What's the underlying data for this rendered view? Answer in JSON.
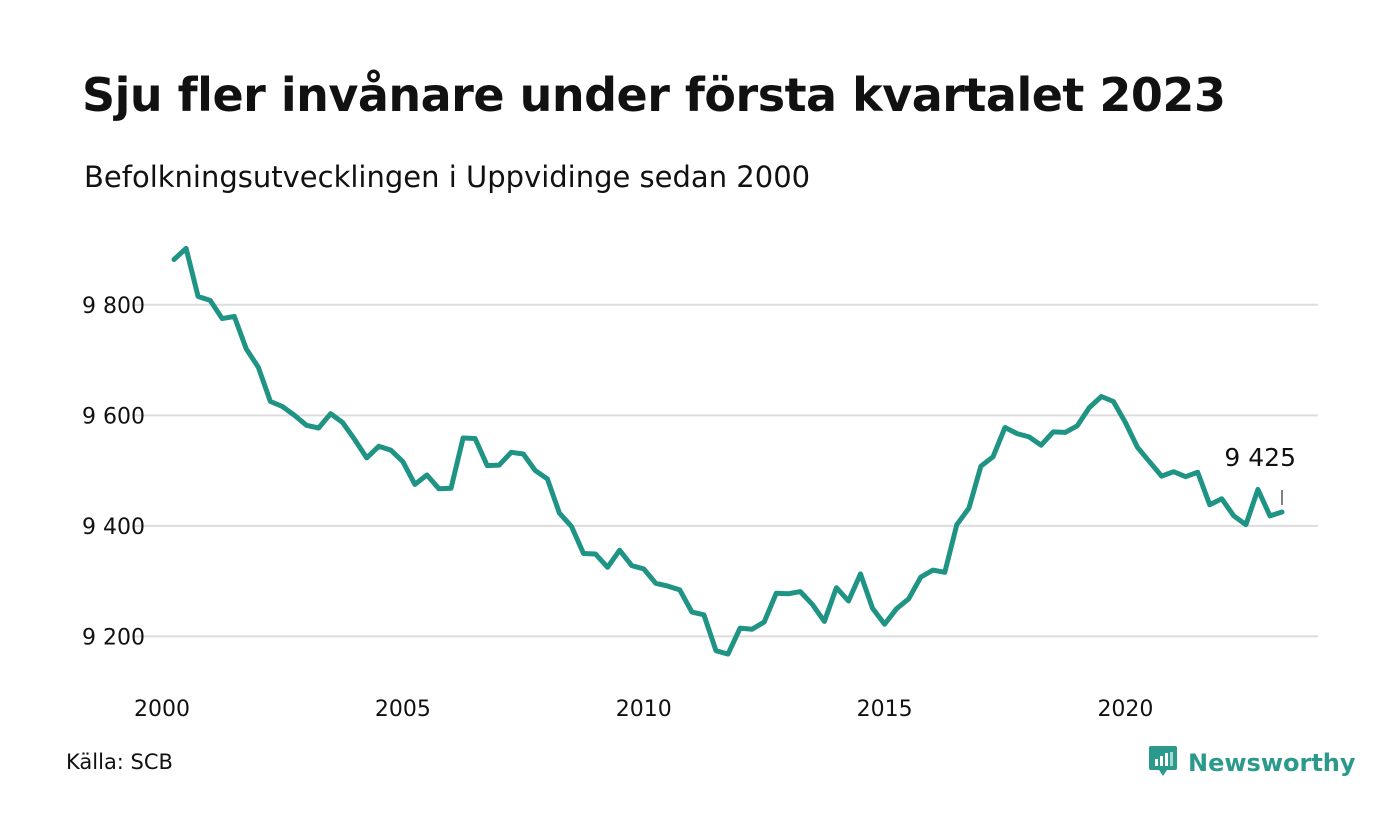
{
  "header": {
    "title": "Sju fler invånare under första kvartalet 2023",
    "subtitle": "Befolkningsutvecklingen i Uppvidinge sedan 2000"
  },
  "footer": {
    "source": "Källa: SCB",
    "brand": "Newsworthy",
    "brand_icon": "newsworthy-logo-icon"
  },
  "colors": {
    "line": "#1f9484",
    "grid": "#dddddd",
    "brand": "#2b9a8c"
  },
  "chart_data": {
    "type": "line",
    "title": "Sju fler invånare under första kvartalet 2023",
    "subtitle": "Befolkningsutvecklingen i Uppvidinge sedan 2000",
    "xlabel": "",
    "ylabel": "",
    "x_tick_labels": [
      "2000",
      "2005",
      "2010",
      "2015",
      "2020"
    ],
    "y_ticks": [
      9200,
      9400,
      9600,
      9800
    ],
    "y_tick_labels": [
      "9 200",
      "9 400",
      "9 600",
      "9 800"
    ],
    "xlim": [
      2000,
      2023.25
    ],
    "ylim": [
      9150,
      9910
    ],
    "grid": true,
    "last_value_label": "9 425",
    "x": [
      2000.25,
      2000.5,
      2000.75,
      2001.0,
      2001.25,
      2001.5,
      2001.75,
      2002.0,
      2002.25,
      2002.5,
      2002.75,
      2003.0,
      2003.25,
      2003.5,
      2003.75,
      2004.0,
      2004.25,
      2004.5,
      2004.75,
      2005.0,
      2005.25,
      2005.5,
      2005.75,
      2006.0,
      2006.25,
      2006.5,
      2006.75,
      2007.0,
      2007.25,
      2007.5,
      2007.75,
      2008.0,
      2008.25,
      2008.5,
      2008.75,
      2009.0,
      2009.25,
      2009.5,
      2009.75,
      2010.0,
      2010.25,
      2010.5,
      2010.75,
      2011.0,
      2011.25,
      2011.5,
      2011.75,
      2012.0,
      2012.25,
      2012.5,
      2012.75,
      2013.0,
      2013.25,
      2013.5,
      2013.75,
      2014.0,
      2014.25,
      2014.5,
      2014.75,
      2015.0,
      2015.25,
      2015.5,
      2015.75,
      2016.0,
      2016.25,
      2016.5,
      2016.75,
      2017.0,
      2017.25,
      2017.5,
      2017.75,
      2018.0,
      2018.25,
      2018.5,
      2018.75,
      2019.0,
      2019.25,
      2019.5,
      2019.75,
      2020.0,
      2020.25,
      2020.5,
      2020.75,
      2021.0,
      2021.25,
      2021.5,
      2021.75,
      2022.0,
      2022.25,
      2022.5,
      2022.75,
      2023.0,
      2023.25
    ],
    "series": [
      {
        "values": [
          9882,
          9902,
          9815,
          9808,
          9775,
          9779,
          9720,
          9687,
          9625,
          9616,
          9600,
          9582,
          9577,
          9603,
          9587,
          9556,
          9523,
          9544,
          9537,
          9516,
          9475,
          9492,
          9467,
          9468,
          9559,
          9558,
          9509,
          9510,
          9533,
          9530,
          9500,
          9485,
          9423,
          9399,
          9350,
          9349,
          9325,
          9356,
          9328,
          9322,
          9296,
          9291,
          9284,
          9244,
          9239,
          9174,
          9168,
          9215,
          9213,
          9226,
          9278,
          9277,
          9281,
          9258,
          9227,
          9288,
          9264,
          9313,
          9251,
          9222,
          9250,
          9268,
          9307,
          9320,
          9316,
          9402,
          9432,
          9508,
          9525,
          9578,
          9567,
          9561,
          9546,
          9570,
          9569,
          9581,
          9614,
          9634,
          9625,
          9587,
          9542,
          9516,
          9490,
          9498,
          9489,
          9497,
          9438,
          9449,
          9418,
          9402,
          9466,
          9418,
          9425
        ]
      }
    ]
  }
}
